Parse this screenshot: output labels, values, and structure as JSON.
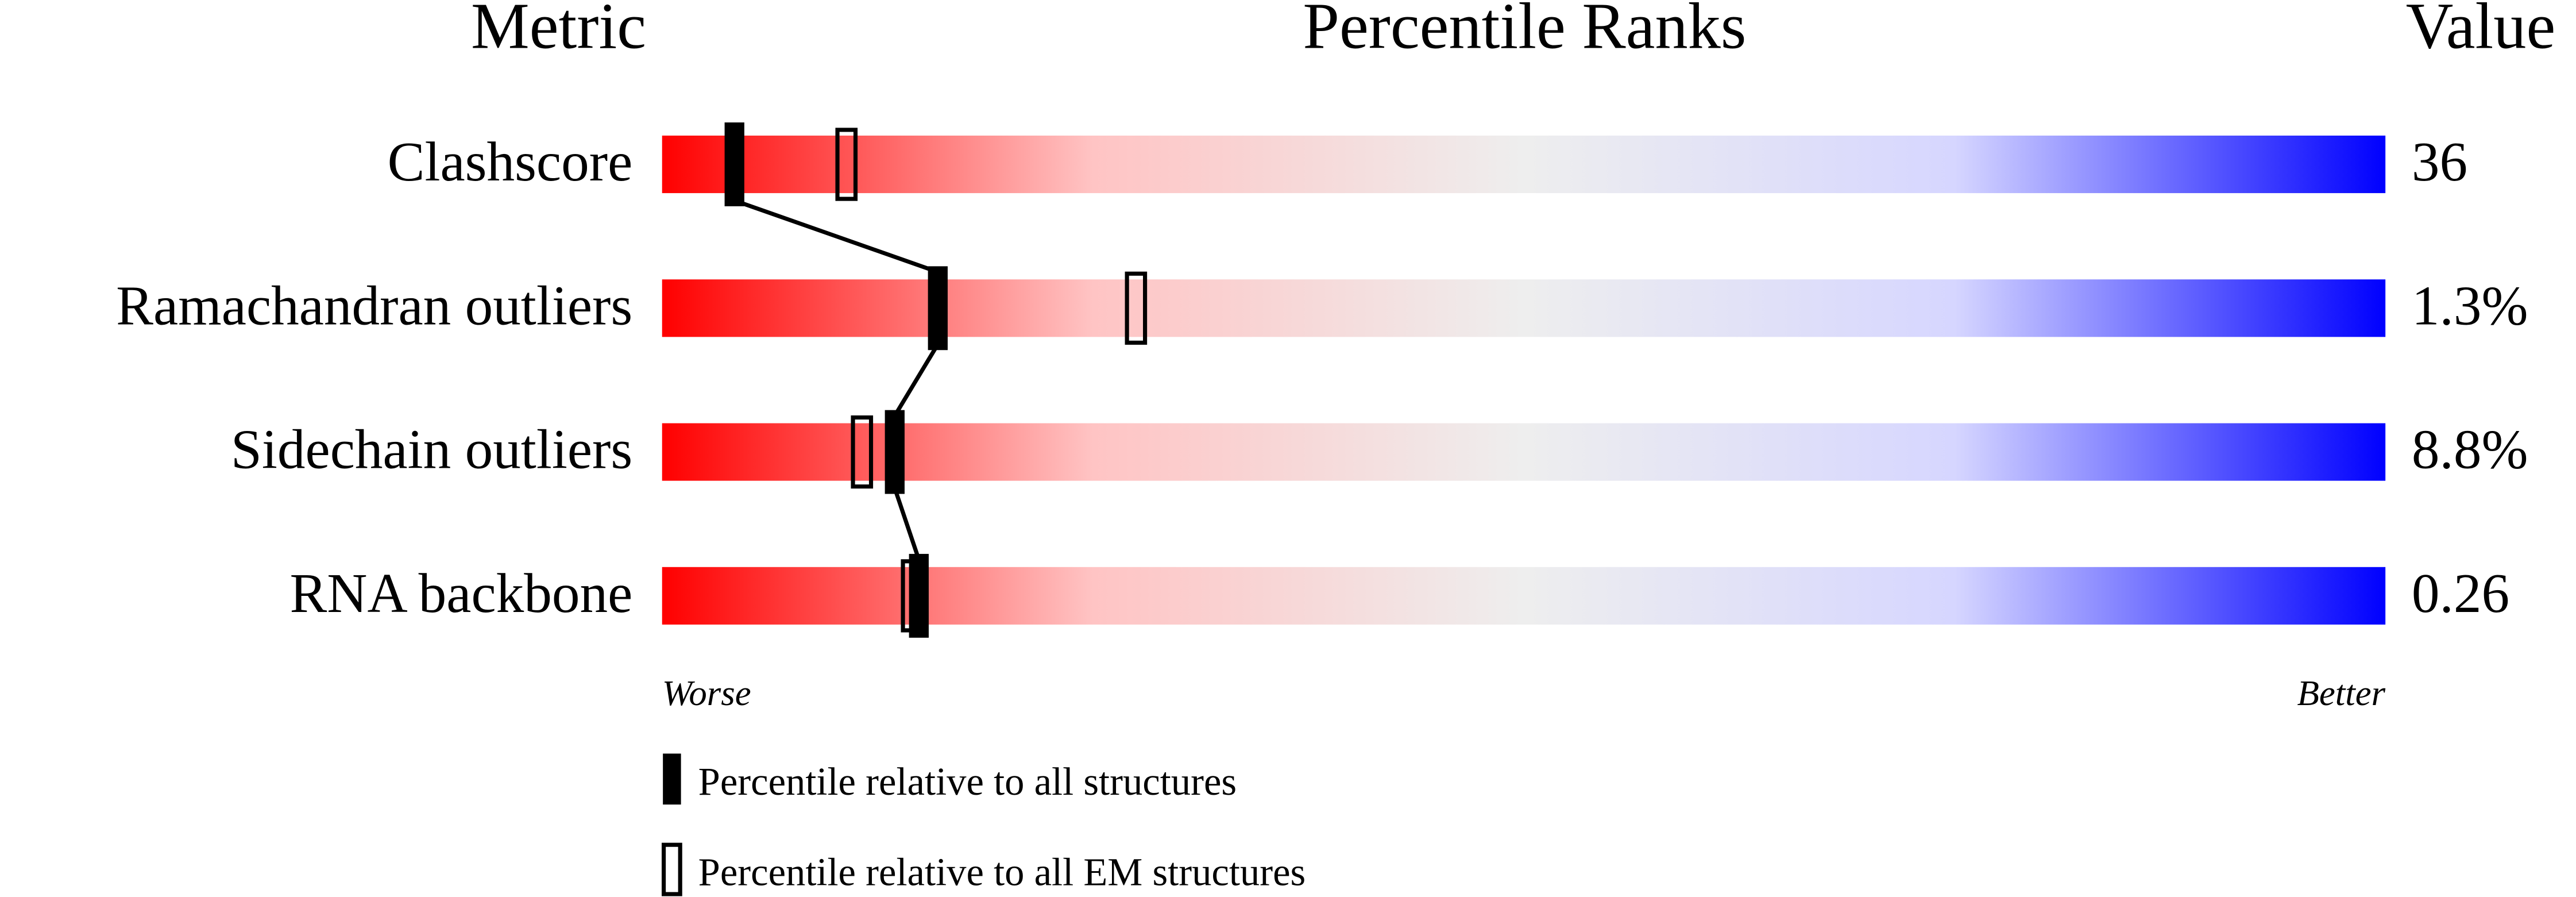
{
  "chart_data": {
    "type": "percentile_slider",
    "headers": [
      "Metric",
      "Percentile Ranks",
      "Value"
    ],
    "categories": [
      "Clashscore",
      "Ramachandran outliers",
      "Sidechain outliers",
      "RNA backbone"
    ],
    "metric_values": [
      "36",
      "1.3%",
      "8.8%",
      "0.26"
    ],
    "series": [
      {
        "name": "Percentile relative to all structures",
        "color": "#000000",
        "filled": true,
        "values": [
          4.2,
          16,
          13.5,
          14.9
        ]
      },
      {
        "name": "Percentile relative to all EM structures",
        "color": "#000000",
        "filled": false,
        "values": [
          10.7,
          27.5,
          11.6,
          14.5
        ]
      }
    ],
    "xlim": [
      0,
      100
    ],
    "axis_labels": [
      "Worse",
      "Better"
    ],
    "scale_colors": [
      "#ff0000",
      "#ffc4c4",
      "#eeeeee",
      "#d6d6ff",
      "#0000ff"
    ]
  }
}
